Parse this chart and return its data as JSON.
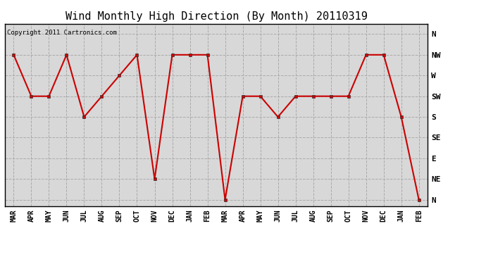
{
  "title": "Wind Monthly High Direction (By Month) 20110319",
  "copyright": "Copyright 2011 Cartronics.com",
  "x_labels": [
    "MAR",
    "APR",
    "MAY",
    "JUN",
    "JUL",
    "AUG",
    "SEP",
    "OCT",
    "NOV",
    "DEC",
    "JAN",
    "FEB",
    "MAR",
    "APR",
    "MAY",
    "JUN",
    "JUL",
    "AUG",
    "SEP",
    "OCT",
    "NOV",
    "DEC",
    "JAN",
    "FEB"
  ],
  "y_labels": [
    "N",
    "NW",
    "W",
    "SW",
    "S",
    "SE",
    "E",
    "NE",
    "N"
  ],
  "y_values": [
    8,
    7,
    6,
    5,
    4,
    3,
    2,
    1,
    0
  ],
  "data_values": [
    7,
    5,
    5,
    7,
    4,
    5,
    6,
    7,
    1,
    7,
    7,
    7,
    0,
    5,
    5,
    4,
    5,
    5,
    5,
    5,
    7,
    7,
    4,
    0
  ],
  "line_color": "#cc0000",
  "marker": "s",
  "marker_size": 3,
  "bg_color": "#d8d8d8",
  "grid_color": "#aaaaaa",
  "title_fontsize": 11,
  "tick_fontsize": 7,
  "copyright_fontsize": 6.5
}
